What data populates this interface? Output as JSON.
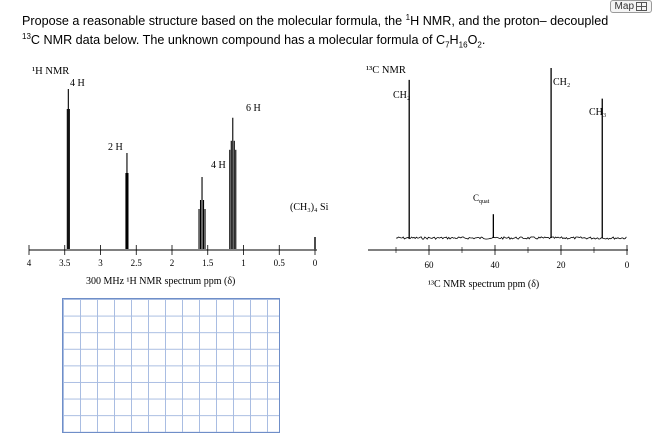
{
  "toolbar": {
    "map_label": "Map"
  },
  "question": {
    "line1": "Propose a reasonable structure based on the molecular formula, the ",
    "h_sup": "1",
    "line1b": "H NMR, and the proton– decoupled",
    "c_sup": "13",
    "line2": "C NMR data below. The unknown compound has a molecular formula of C",
    "sub7": "7",
    "h_letter": "H",
    "sub16": "16",
    "o_letter": "O",
    "sub2": "2",
    "period": "."
  },
  "chart_data": [
    {
      "type": "line",
      "title": "¹H NMR",
      "xlabel": "300 MHz ¹H NMR spectrum ppm (δ)",
      "xlim": [
        4,
        0
      ],
      "xticks": [
        "4",
        "3.5",
        "3",
        "2.5",
        "2",
        "1.5",
        "1",
        "0.5",
        "0"
      ],
      "peaks": [
        {
          "ppm": 3.45,
          "height": 1.0,
          "label": "4 H"
        },
        {
          "ppm": 2.63,
          "height": 0.6,
          "label": "2 H"
        },
        {
          "ppm": 1.58,
          "height": 0.45,
          "label": "4 H"
        },
        {
          "ppm": 1.15,
          "height": 0.82,
          "label": "6 H"
        },
        {
          "ppm": 0.0,
          "height": 0.0,
          "label": "(CH₃)₄ Si"
        }
      ],
      "grid": false
    },
    {
      "type": "line",
      "title": "¹³C NMR",
      "xlabel": "¹³C NMR spectrum ppm (δ)",
      "xlim": [
        70,
        0
      ],
      "xticks": [
        "60",
        "40",
        "20",
        "0"
      ],
      "peaks": [
        {
          "ppm": 66,
          "height": 0.93,
          "label": "CH₂"
        },
        {
          "ppm": 40.5,
          "height": 0.14,
          "label": "Cquat"
        },
        {
          "ppm": 23,
          "height": 1.0,
          "label": "CH₂"
        },
        {
          "ppm": 7.5,
          "height": 0.82,
          "label": "CH₃"
        }
      ],
      "grid": false
    }
  ],
  "spectra": {
    "h_title": "¹H NMR",
    "c_title": "¹³C NMR",
    "h_axis_label": "300 MHz ¹H NMR spectrum ppm (δ)",
    "c_axis_label": "¹³C NMR spectrum ppm (δ)",
    "tms_label": "(CH₃)₄ Si",
    "cquat_main": "C",
    "cquat_sub": "quat"
  }
}
